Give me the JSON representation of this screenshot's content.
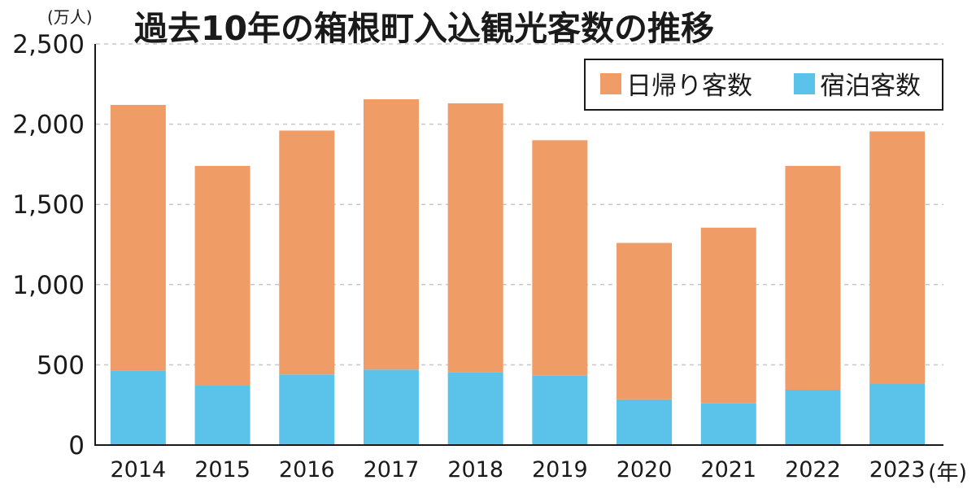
{
  "chart_data": {
    "type": "bar",
    "stacked": true,
    "title": "過去10年の箱根町入込観光客数の推移",
    "y_unit_label": "(万人)",
    "x_unit_label": "(年)",
    "categories": [
      "2014",
      "2015",
      "2016",
      "2017",
      "2018",
      "2019",
      "2020",
      "2021",
      "2022",
      "2023"
    ],
    "series": [
      {
        "name": "宿泊客数",
        "color": "#5bc3ea",
        "values": [
          465,
          370,
          440,
          470,
          455,
          435,
          285,
          260,
          345,
          385
        ]
      },
      {
        "name": "日帰り客数",
        "color": "#f09c67",
        "values": [
          1655,
          1370,
          1520,
          1685,
          1675,
          1465,
          975,
          1095,
          1395,
          1570
        ]
      }
    ],
    "y_ticks": [
      0,
      500,
      1000,
      1500,
      2000,
      2500
    ],
    "y_tick_labels": [
      "0",
      "500",
      "1,000",
      "1,500",
      "2,000",
      "2,500"
    ],
    "ylim": [
      0,
      2500
    ],
    "grid": true,
    "legend_position": "top-right"
  }
}
